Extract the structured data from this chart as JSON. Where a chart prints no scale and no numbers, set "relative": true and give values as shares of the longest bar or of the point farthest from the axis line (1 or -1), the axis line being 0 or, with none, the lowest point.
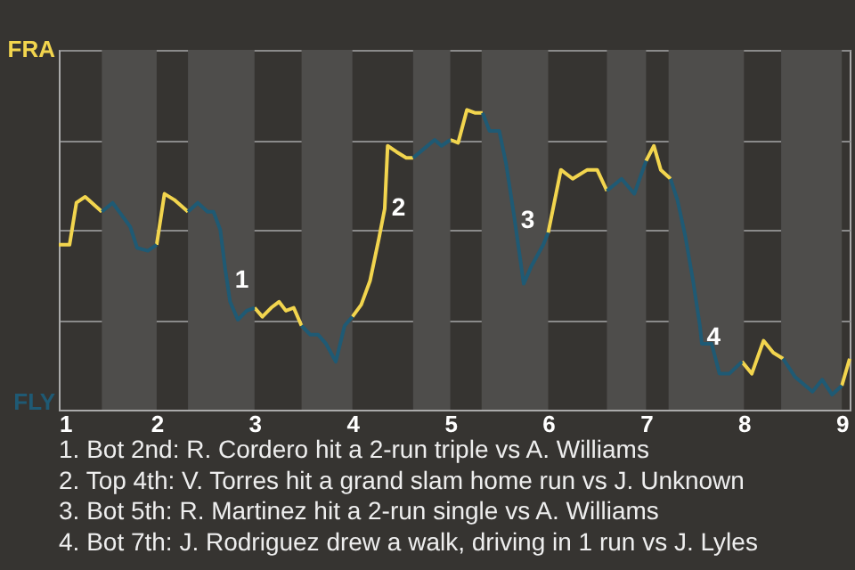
{
  "chart_data": {
    "type": "line",
    "relative": true,
    "xlim": [
      1,
      9.08
    ],
    "xticks": [
      1,
      2,
      3,
      4,
      5,
      6,
      7,
      8,
      9
    ],
    "grid": "y",
    "series": [
      {
        "name": "FRA",
        "color": "#f2d54e",
        "x": [
          1,
          1.11,
          1.18,
          1.27,
          1.44,
          null,
          2,
          2.08,
          2.18,
          2.32,
          null,
          3,
          3.08,
          3.17,
          3.25,
          3.32,
          3.4,
          3.48,
          null,
          4,
          4.09,
          4.18,
          4.27,
          4.33,
          4.36,
          4.45,
          4.55,
          4.62,
          null,
          5,
          5.08,
          5.17,
          5.25,
          5.33,
          null,
          6,
          6.13,
          6.25,
          6.4,
          6.5,
          6.6,
          null,
          7,
          7.08,
          7.15,
          7.25,
          null,
          7.98,
          8.08,
          8.2,
          8.3,
          8.4,
          null,
          9,
          9.08
        ],
        "values": [
          0.55,
          0.55,
          0.69,
          0.71,
          0.66,
          null,
          0.55,
          0.72,
          0.7,
          0.66,
          null,
          0.34,
          0.31,
          0.34,
          0.36,
          0.33,
          0.34,
          0.28,
          null,
          0.31,
          0.35,
          0.43,
          0.57,
          0.67,
          0.88,
          0.86,
          0.84,
          0.84,
          null,
          0.9,
          0.89,
          1,
          0.99,
          0.99,
          null,
          0.59,
          0.8,
          0.77,
          0.8,
          0.8,
          0.73,
          null,
          0.83,
          0.88,
          0.8,
          0.77,
          null,
          0.16,
          0.12,
          0.23,
          0.19,
          0.17,
          null,
          0.08,
          0.17
        ]
      },
      {
        "name": "FLY",
        "color": "#1f5a74",
        "x": [
          1.44,
          1.55,
          1.64,
          1.73,
          1.8,
          1.91,
          2,
          null,
          2.32,
          2.42,
          2.52,
          2.58,
          2.65,
          2.7,
          2.75,
          2.83,
          2.92,
          3,
          null,
          3.48,
          3.57,
          3.65,
          3.73,
          3.83,
          3.92,
          4,
          null,
          4.62,
          4.73,
          4.84,
          4.91,
          5,
          null,
          5.33,
          5.4,
          5.5,
          5.57,
          5.65,
          5.75,
          5.83,
          5.95,
          6,
          null,
          6.6,
          6.75,
          6.88,
          7,
          null,
          7.25,
          7.32,
          7.4,
          7.48,
          7.55,
          7.57,
          7.67,
          7.75,
          7.85,
          7.98,
          null,
          8.4,
          8.52,
          8.7,
          8.8,
          8.9,
          9
        ],
        "values": [
          0.66,
          0.69,
          0.65,
          0.61,
          0.54,
          0.53,
          0.55,
          null,
          0.66,
          0.69,
          0.66,
          0.66,
          0.6,
          0.47,
          0.36,
          0.3,
          0.33,
          0.34,
          null,
          0.28,
          0.25,
          0.25,
          0.22,
          0.16,
          0.28,
          0.31,
          null,
          0.84,
          0.87,
          0.9,
          0.88,
          0.9,
          null,
          0.99,
          0.93,
          0.93,
          0.82,
          0.65,
          0.42,
          0.48,
          0.55,
          0.59,
          null,
          0.73,
          0.77,
          0.72,
          0.83,
          null,
          0.77,
          0.7,
          0.58,
          0.43,
          0.28,
          0.22,
          0.22,
          0.12,
          0.12,
          0.16,
          null,
          0.17,
          0.11,
          0.06,
          0.1,
          0.05,
          0.08
        ]
      }
    ],
    "bands": [
      {
        "axis": "x",
        "from": 1.44,
        "to": 2,
        "color": "#4e4d4b"
      },
      {
        "axis": "x",
        "from": 2.32,
        "to": 3,
        "color": "#4e4d4b"
      },
      {
        "axis": "x",
        "from": 3.48,
        "to": 4,
        "color": "#4e4d4b"
      },
      {
        "axis": "x",
        "from": 4.62,
        "to": 5,
        "color": "#4e4d4b"
      },
      {
        "axis": "x",
        "from": 5.32,
        "to": 6,
        "color": "#4e4d4b"
      },
      {
        "axis": "x",
        "from": 6.6,
        "to": 7,
        "color": "#4e4d4b"
      },
      {
        "axis": "x",
        "from": 7.23,
        "to": 8,
        "color": "#4e4d4b"
      },
      {
        "axis": "x",
        "from": 8.38,
        "to": 9,
        "color": "#4e4d4b"
      }
    ],
    "annotations": [
      {
        "text": "1",
        "x": 2.8,
        "y": 0.43
      },
      {
        "text": "2",
        "x": 4.4,
        "y": 0.67
      },
      {
        "text": "3",
        "x": 5.72,
        "y": 0.63
      },
      {
        "text": "4",
        "x": 7.62,
        "y": 0.24
      },
      "1. Bot 2nd: R. Cordero hit a 2-run triple vs A. Williams",
      "2. Top 4th: V. Torres hit a grand slam home run vs J. Unknown",
      "3. Bot 5th: R. Martinez hit a 2-run single vs A. Williams",
      "4. Bot 7th: J. Rodriguez drew a walk, driving in 1 run vs J. Lyles"
    ]
  }
}
